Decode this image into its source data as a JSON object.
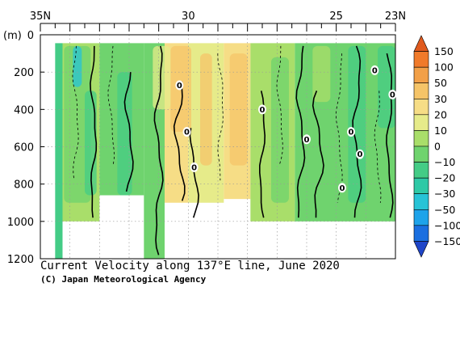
{
  "chart_data": {
    "type": "heatmap",
    "title": "Current Velocity along 137°E line, June 2020",
    "credit": "(C) Japan Meteorological Agency",
    "y_unit_label": "(m)",
    "x_axis": {
      "range": [
        35,
        23
      ],
      "tick_labels": [
        {
          "lat": 35,
          "label": "35N"
        },
        {
          "lat": 30,
          "label": "30"
        },
        {
          "lat": 25,
          "label": "25"
        },
        {
          "lat": 23,
          "label": "23N"
        }
      ]
    },
    "y_axis": {
      "range": [
        0,
        1200
      ],
      "inverted": true,
      "ticks": [
        0,
        200,
        400,
        600,
        800,
        1000,
        1200
      ]
    },
    "grid": true,
    "colorbar": {
      "levels": [
        150,
        100,
        50,
        30,
        20,
        10,
        0,
        -10,
        -20,
        -30,
        -50,
        -100,
        -150
      ],
      "colors": {
        "gt150": "#e05a1e",
        "100_150": "#f07a2a",
        "50_100": "#f2a048",
        "30_50": "#f5c468",
        "20_30": "#f6dd86",
        "10_20": "#e6eb8a",
        "0_10": "#a9de6a",
        "m10_0": "#6fd36e",
        "m20_m10": "#44cc86",
        "m30_m20": "#2ec9a6",
        "m50_m30": "#27c3d6",
        "m100_m50": "#1ea3ea",
        "m150_m100": "#1a6fe0",
        "lt_m150": "#1f45c8"
      }
    },
    "bands": [
      {
        "lat": [
          34.5,
          34.25
        ],
        "bottom": 1200,
        "class": "m20_m10"
      },
      {
        "lat": [
          34.25,
          33.0
        ],
        "bottom": 1000,
        "class": "0_10"
      },
      {
        "lat": [
          33.0,
          31.5
        ],
        "bottom": 860,
        "class": "m10_0"
      },
      {
        "lat": [
          31.5,
          30.8
        ],
        "bottom": 1200,
        "class": "m10_0"
      },
      {
        "lat": [
          30.8,
          30.0
        ],
        "bottom": 900,
        "class": "20_30"
      },
      {
        "lat": [
          30.0,
          28.8
        ],
        "bottom": 900,
        "class": "10_20"
      },
      {
        "lat": [
          28.8,
          27.9
        ],
        "bottom": 880,
        "class": "20_30"
      },
      {
        "lat": [
          27.9,
          26.4
        ],
        "bottom": 1000,
        "class": "0_10"
      },
      {
        "lat": [
          26.4,
          23.0
        ],
        "bottom": 1000,
        "class": "m10_0"
      }
    ],
    "zero_label_text": "0",
    "zero_labels": [
      {
        "lat": 30.3,
        "depth": 270
      },
      {
        "lat": 30.05,
        "depth": 520
      },
      {
        "lat": 29.8,
        "depth": 710
      },
      {
        "lat": 27.5,
        "depth": 400
      },
      {
        "lat": 26.0,
        "depth": 560
      },
      {
        "lat": 24.5,
        "depth": 520
      },
      {
        "lat": 24.8,
        "depth": 820
      },
      {
        "lat": 24.2,
        "depth": 640
      },
      {
        "lat": 23.7,
        "depth": 190
      },
      {
        "lat": 23.1,
        "depth": 320
      }
    ]
  }
}
